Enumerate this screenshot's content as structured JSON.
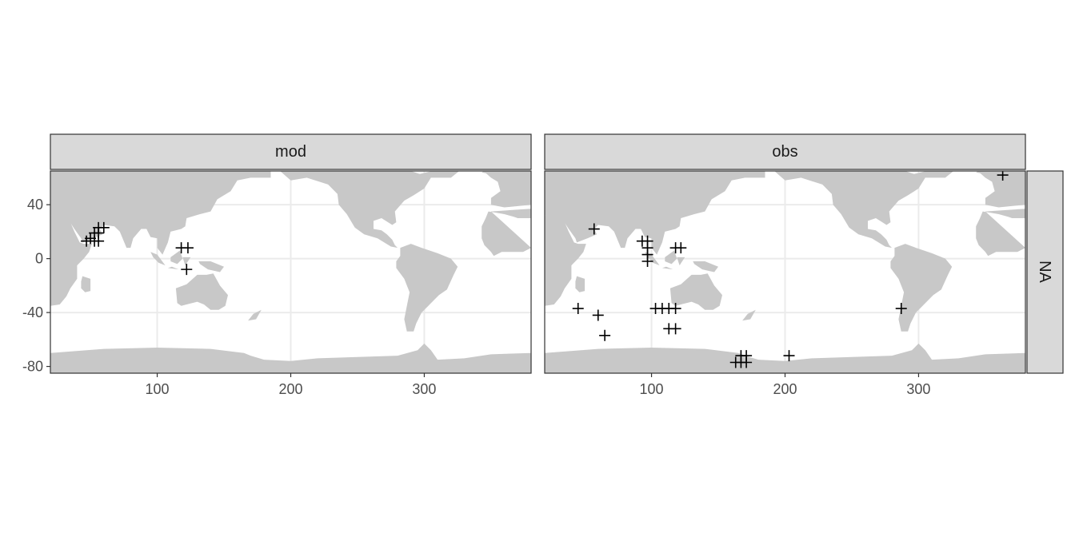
{
  "chart_data": {
    "type": "scatter",
    "marker": "cross",
    "facet_row_label": "NA",
    "x_ticks": [
      100,
      200,
      300
    ],
    "y_ticks": [
      40,
      0,
      -40,
      -80
    ],
    "xlim": [
      20,
      380
    ],
    "ylim": [
      -85,
      65
    ],
    "grid": true,
    "background_map": "world land (grey) over ocean (white)",
    "panels": [
      {
        "name": "mod",
        "points": [
          {
            "x": 47,
            "y": 13
          },
          {
            "x": 50,
            "y": 15
          },
          {
            "x": 53,
            "y": 13
          },
          {
            "x": 56,
            "y": 13
          },
          {
            "x": 53,
            "y": 19
          },
          {
            "x": 56,
            "y": 19
          },
          {
            "x": 56,
            "y": 23
          },
          {
            "x": 60,
            "y": 23
          },
          {
            "x": 118,
            "y": 8
          },
          {
            "x": 123,
            "y": 8
          },
          {
            "x": 122,
            "y": -8
          }
        ]
      },
      {
        "name": "obs",
        "points": [
          {
            "x": 57,
            "y": 22
          },
          {
            "x": 93,
            "y": 13
          },
          {
            "x": 97,
            "y": 13
          },
          {
            "x": 97,
            "y": 8
          },
          {
            "x": 97,
            "y": 3
          },
          {
            "x": 97,
            "y": -2
          },
          {
            "x": 118,
            "y": 8
          },
          {
            "x": 122,
            "y": 8
          },
          {
            "x": 45,
            "y": -37
          },
          {
            "x": 60,
            "y": -42
          },
          {
            "x": 65,
            "y": -57
          },
          {
            "x": 103,
            "y": -37
          },
          {
            "x": 108,
            "y": -37
          },
          {
            "x": 113,
            "y": -37
          },
          {
            "x": 118,
            "y": -37
          },
          {
            "x": 113,
            "y": -52
          },
          {
            "x": 118,
            "y": -52
          },
          {
            "x": 163,
            "y": -77
          },
          {
            "x": 167,
            "y": -77
          },
          {
            "x": 171,
            "y": -77
          },
          {
            "x": 167,
            "y": -72
          },
          {
            "x": 171,
            "y": -72
          },
          {
            "x": 203,
            "y": -72
          },
          {
            "x": 287,
            "y": -37
          },
          {
            "x": 363,
            "y": 62
          }
        ]
      }
    ]
  }
}
